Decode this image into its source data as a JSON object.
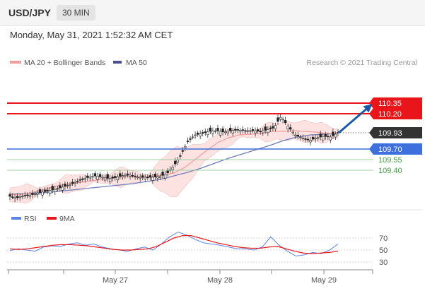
{
  "header": {
    "symbol": "USD/JPY",
    "timeframe": "30 MIN"
  },
  "datetime": "Monday, May 31, 2021 1:52:32 AM CET",
  "legend": {
    "ma_bb": "MA 20 + Bollinger Bands",
    "ma50": "MA 50",
    "rsi": "RSI",
    "rsi_ma": "9MA"
  },
  "credit": "Research © 2021 Trading Central",
  "colors": {
    "resistance": "#e8161b",
    "support": "#3d6fde",
    "target": "#3fa23f",
    "price_tag": "#333333",
    "ma50": "#6d7bb8",
    "ma20": "#f19d9d",
    "bollinger": "#fde2e2",
    "rsi": "#5b84e6",
    "rsi_ma": "#e8161b",
    "arrow": "#1c58a8"
  },
  "chart_data": [
    {
      "type": "candlestick",
      "title": "USD/JPY 30 MIN",
      "x_ticks": [
        "May 27",
        "May 28",
        "May 29"
      ],
      "ylim": [
        109.0,
        110.45
      ],
      "current_price": 109.93,
      "levels": [
        {
          "value": 110.35,
          "label": "110.35",
          "kind": "resistance"
        },
        {
          "value": 110.2,
          "label": "110.20",
          "kind": "resistance"
        },
        {
          "value": 109.93,
          "label": "109.93",
          "kind": "current"
        },
        {
          "value": 109.7,
          "label": "109.70",
          "kind": "support"
        },
        {
          "value": 109.55,
          "label": "109.55",
          "kind": "target"
        },
        {
          "value": 109.4,
          "label": "109.40",
          "kind": "target"
        }
      ],
      "close_path": [
        109.03,
        109.01,
        109.04,
        109.05,
        109.08,
        109.1,
        109.12,
        109.15,
        109.18,
        109.22,
        109.27,
        109.3,
        109.32,
        109.3,
        109.28,
        109.3,
        109.33,
        109.33,
        109.3,
        109.3,
        109.3,
        109.31,
        109.35,
        109.46,
        109.62,
        109.82,
        109.9,
        109.92,
        109.95,
        109.96,
        109.94,
        109.96,
        109.97,
        109.96,
        109.96,
        109.95,
        109.97,
        110.0,
        110.16,
        110.02,
        109.9,
        109.86,
        109.82,
        109.86,
        109.88,
        109.87,
        109.93
      ],
      "ma20_path": [
        109.05,
        109.06,
        109.08,
        109.12,
        109.17,
        109.2,
        109.22,
        109.24,
        109.26,
        109.28,
        109.3,
        109.31,
        109.3,
        109.31,
        109.33,
        109.36,
        109.44,
        109.56,
        109.68,
        109.79,
        109.86,
        109.9,
        109.91,
        109.92,
        109.95,
        109.95,
        109.96,
        109.95,
        109.94,
        109.92,
        109.92
      ],
      "ma50_path": [
        109.06,
        109.07,
        109.08,
        109.09,
        109.11,
        109.13,
        109.15,
        109.17,
        109.19,
        109.21,
        109.24,
        109.27,
        109.32,
        109.37,
        109.43,
        109.5,
        109.57,
        109.63,
        109.69,
        109.75,
        109.82,
        109.87,
        109.9,
        109.91,
        109.92
      ]
    },
    {
      "type": "line",
      "series": [
        {
          "name": "RSI",
          "values": [
            49,
            52,
            50,
            48,
            55,
            57,
            56,
            60,
            62,
            58,
            60,
            55,
            52,
            50,
            48,
            52,
            55,
            50,
            60,
            72,
            80,
            75,
            68,
            62,
            60,
            58,
            55,
            52,
            52,
            50,
            55,
            72,
            58,
            48,
            40,
            42,
            46,
            44,
            50,
            60
          ]
        },
        {
          "name": "9MA",
          "values": [
            52,
            51,
            52,
            54,
            56,
            58,
            59,
            59,
            58,
            57,
            55,
            53,
            51,
            50,
            50,
            51,
            52,
            56,
            63,
            70,
            74,
            74,
            70,
            66,
            62,
            59,
            56,
            54,
            53,
            53,
            55,
            56,
            52,
            48,
            45,
            44,
            45,
            46,
            48
          ]
        }
      ],
      "y_ticks": [
        70,
        50,
        30
      ],
      "ylim": [
        20,
        90
      ]
    }
  ]
}
